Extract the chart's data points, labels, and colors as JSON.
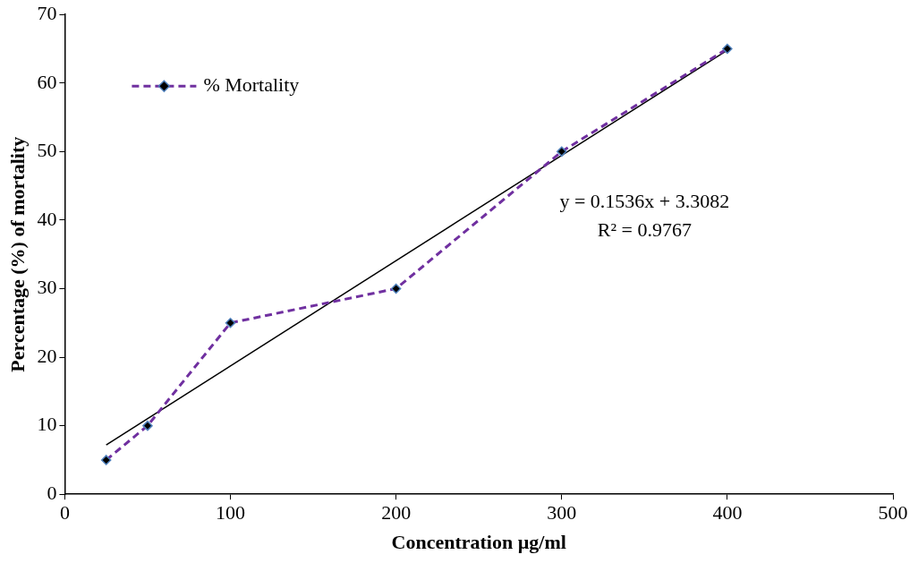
{
  "chart_data": {
    "type": "line",
    "xlabel": "Concentration µg/ml",
    "ylabel": "Percentage (%) of mortality",
    "x": [
      25,
      50,
      100,
      200,
      300,
      400
    ],
    "series": [
      {
        "name": "% Mortality",
        "color": "#7030a0",
        "values": [
          5,
          10,
          25,
          30,
          50,
          65
        ],
        "line_style": "dashed",
        "marker": "diamond"
      },
      {
        "type": "line",
        "color": "#000000",
        "x": [
          25,
          400
        ],
        "values": [
          7.2,
          64.8
        ],
        "line_style": "solid"
      }
    ],
    "annotations": [
      "y = 0.1536x + 3.3082",
      "R² = 0.9767"
    ],
    "xlim": [
      0,
      500
    ],
    "xticks": [
      0,
      100,
      200,
      300,
      400,
      500
    ],
    "ylim": [
      0,
      70
    ],
    "yticks": [
      0,
      10,
      20,
      30,
      40,
      50,
      60,
      70
    ],
    "grid": false,
    "legend": "top left"
  }
}
